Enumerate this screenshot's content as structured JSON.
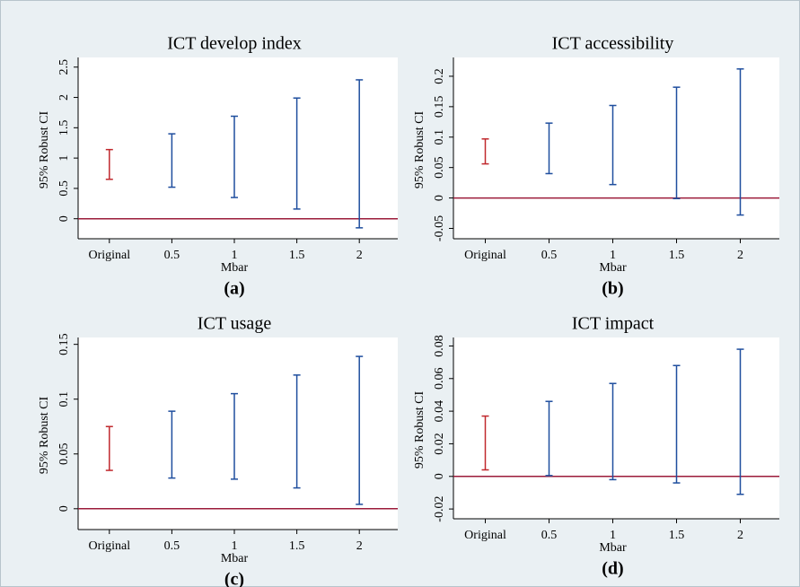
{
  "chart_data": [
    {
      "type": "errorbar",
      "title": "ICT develop index",
      "y_label": "95% Robust CI",
      "x_label": "Mbar",
      "caption": "(a)",
      "categories": [
        "Original",
        "0.5",
        "1",
        "1.5",
        "2"
      ],
      "low": [
        0.65,
        0.52,
        0.35,
        0.16,
        -0.15
      ],
      "high": [
        1.14,
        1.4,
        1.69,
        1.99,
        2.29
      ],
      "colors": [
        "#c0282d",
        "#1f4e9e",
        "#1f4e9e",
        "#1f4e9e",
        "#1f4e9e"
      ],
      "hline": 0,
      "hline_color": "#9b1b3a",
      "ylim": [
        -0.33,
        2.6
      ],
      "yticks": [
        0,
        0.5,
        1,
        1.5,
        2,
        2.5
      ]
    },
    {
      "type": "errorbar",
      "title": "ICT accessibility",
      "y_label": "95% Robust CI",
      "x_label": "Mbar",
      "caption": "(b)",
      "categories": [
        "Original",
        "0.5",
        "1",
        "1.5",
        "2"
      ],
      "low": [
        0.056,
        0.04,
        0.022,
        -0.001,
        -0.028
      ],
      "high": [
        0.097,
        0.123,
        0.152,
        0.182,
        0.212
      ],
      "colors": [
        "#c0282d",
        "#1f4e9e",
        "#1f4e9e",
        "#1f4e9e",
        "#1f4e9e"
      ],
      "hline": 0,
      "hline_color": "#9b1b3a",
      "ylim": [
        -0.067,
        0.225
      ],
      "yticks": [
        -0.05,
        0,
        0.05,
        0.1,
        0.15,
        0.2
      ]
    },
    {
      "type": "errorbar",
      "title": "ICT usage",
      "y_label": "95% Robust CI",
      "x_label": "Mbar",
      "caption": "(c)",
      "categories": [
        "Original",
        "0.5",
        "1",
        "1.5",
        "2"
      ],
      "low": [
        0.035,
        0.028,
        0.027,
        0.019,
        0.004
      ],
      "high": [
        0.075,
        0.089,
        0.105,
        0.122,
        0.139
      ],
      "colors": [
        "#c0282d",
        "#1f4e9e",
        "#1f4e9e",
        "#1f4e9e",
        "#1f4e9e"
      ],
      "hline": 0,
      "hline_color": "#9b1b3a",
      "ylim": [
        -0.019,
        0.153
      ],
      "yticks": [
        0,
        0.05,
        0.1,
        0.15
      ]
    },
    {
      "type": "errorbar",
      "title": "ICT impact",
      "y_label": "95% Robust CI",
      "x_label": "Mbar",
      "caption": "(d)",
      "categories": [
        "Original",
        "0.5",
        "1",
        "1.5",
        "2"
      ],
      "low": [
        0.004,
        0.0005,
        -0.002,
        -0.004,
        -0.011
      ],
      "high": [
        0.037,
        0.046,
        0.057,
        0.068,
        0.078
      ],
      "colors": [
        "#c0282d",
        "#1f4e9e",
        "#1f4e9e",
        "#1f4e9e",
        "#1f4e9e"
      ],
      "hline": 0,
      "hline_color": "#9b1b3a",
      "ylim": [
        -0.026,
        0.083
      ],
      "yticks": [
        -0.02,
        0,
        0.02,
        0.04,
        0.06,
        0.08
      ]
    }
  ]
}
